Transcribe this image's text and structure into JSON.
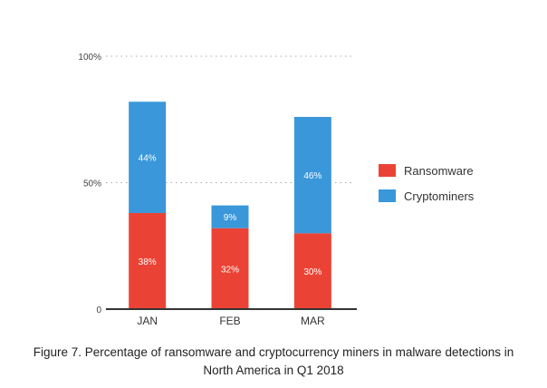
{
  "chart_data": {
    "type": "bar",
    "stacked": true,
    "categories": [
      "JAN",
      "FEB",
      "MAR"
    ],
    "series": [
      {
        "name": "Ransomware",
        "values": [
          38,
          32,
          30
        ],
        "color": "#ea4335",
        "labels": [
          "38%",
          "32%",
          "30%"
        ]
      },
      {
        "name": "Cryptominers",
        "values": [
          44,
          9,
          46
        ],
        "color": "#3a97da",
        "labels": [
          "44%",
          "9%",
          "46%"
        ]
      }
    ],
    "ylim": [
      0,
      100
    ],
    "yticks": [
      {
        "value": 0,
        "label": "0"
      },
      {
        "value": 50,
        "label": "50%"
      },
      {
        "value": 100,
        "label": "100%"
      }
    ],
    "grid": "dotted horizontal",
    "legend": "right",
    "title": "Figure 7. Percentage of ransomware and cryptocurrency miners in malware detections in North America in Q1 2018",
    "xlabel": "",
    "ylabel": ""
  },
  "caption": {
    "line1": "Figure 7. Percentage of ransomware and cryptocurrency miners in malware detections in",
    "line2": "North America in Q1 2018"
  }
}
